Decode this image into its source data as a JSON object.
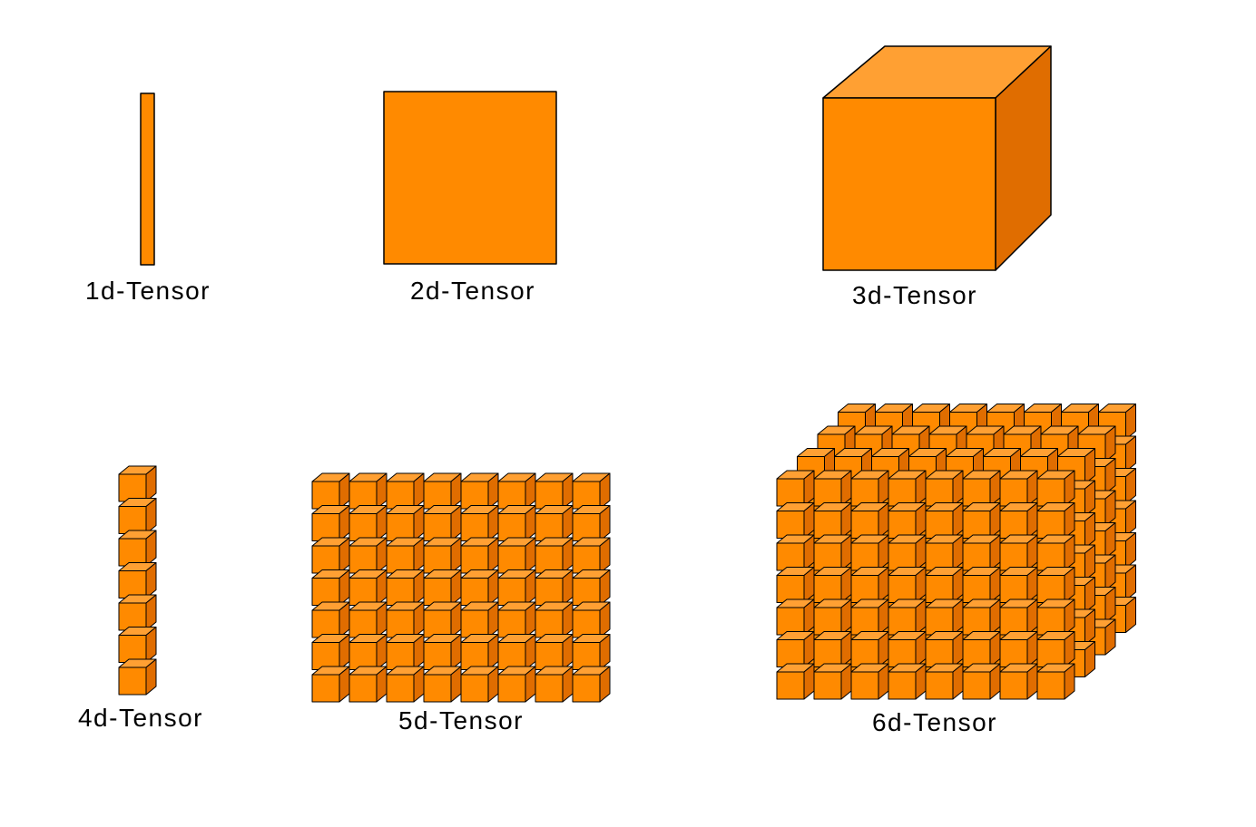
{
  "colors": {
    "front": "#FF8A00",
    "top": "#FFA033",
    "side": "#E06D00",
    "stroke": "#000000",
    "background": "#FFFFFF"
  },
  "tensors": [
    {
      "label": "1d-Tensor",
      "shape": "bar"
    },
    {
      "label": "2d-Tensor",
      "shape": "square"
    },
    {
      "label": "3d-Tensor",
      "shape": "cube"
    },
    {
      "label": "4d-Tensor",
      "shape": "column-of-cubes",
      "rows": 7,
      "cols": 1
    },
    {
      "label": "5d-Tensor",
      "shape": "grid-of-cubes",
      "rows": 7,
      "cols": 8
    },
    {
      "label": "6d-Tensor",
      "shape": "stack-of-cube-grids",
      "rows": 7,
      "cols": 8,
      "layers": 4
    }
  ]
}
